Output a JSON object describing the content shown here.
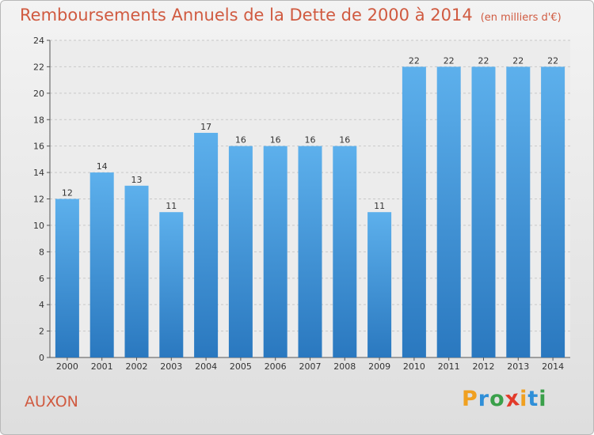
{
  "chart_data": {
    "type": "bar",
    "title": "Remboursements Annuels de la Dette de 2000 à 2014",
    "subtitle": "(en milliers d'€)",
    "categories": [
      "2000",
      "2001",
      "2002",
      "2003",
      "2004",
      "2005",
      "2006",
      "2007",
      "2008",
      "2009",
      "2010",
      "2011",
      "2012",
      "2013",
      "2014"
    ],
    "values": [
      12,
      14,
      13,
      11,
      17,
      16,
      16,
      16,
      16,
      11,
      22,
      22,
      22,
      22,
      22
    ],
    "ylim": [
      0,
      24
    ],
    "yticks": [
      0,
      2,
      4,
      6,
      8,
      10,
      12,
      14,
      16,
      18,
      20,
      22,
      24
    ],
    "xlabel": "",
    "ylabel": "",
    "grid": "horizontal-dashed",
    "bar_color": "#4a9fe0"
  },
  "footer": {
    "location": "AUXON",
    "brand_letters": [
      "P",
      "r",
      "o",
      "x",
      "i",
      "t",
      "i"
    ],
    "brand_colors": [
      "#f0a020",
      "#2f8fd8",
      "#3aa04a",
      "#e23a2a",
      "#f0a020",
      "#2f8fd8",
      "#3aa04a"
    ]
  }
}
